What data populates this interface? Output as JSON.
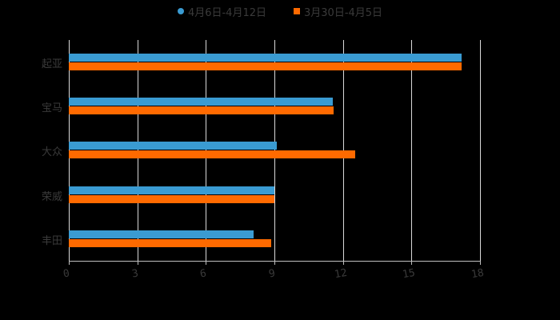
{
  "chart_data": {
    "type": "bar",
    "orientation": "horizontal",
    "title": "",
    "xlabel": "",
    "ylabel": "",
    "categories": [
      "起亚",
      "宝马",
      "大众",
      "荣威",
      "丰田"
    ],
    "series": [
      {
        "name": "4月6日-4月12日",
        "color": "#3a9bd2",
        "marker": "circle",
        "values": [
          17.2,
          11.55,
          9.1,
          9.0,
          8.1
        ]
      },
      {
        "name": "3月30日-4月5日",
        "color": "#ff6a00",
        "marker": "square",
        "values": [
          17.2,
          11.6,
          12.55,
          9.0,
          8.85
        ]
      }
    ],
    "xlim": [
      0,
      18
    ],
    "xticks": [
      "0",
      "3",
      "6",
      "9",
      "12",
      "15",
      "18"
    ],
    "grid": true,
    "legend_position": "top"
  },
  "legend": {
    "items": [
      {
        "label": "4月6日-4月12日",
        "color": "#3a9bd2"
      },
      {
        "label": "3月30日-4月5日",
        "color": "#ff6a00"
      }
    ]
  }
}
